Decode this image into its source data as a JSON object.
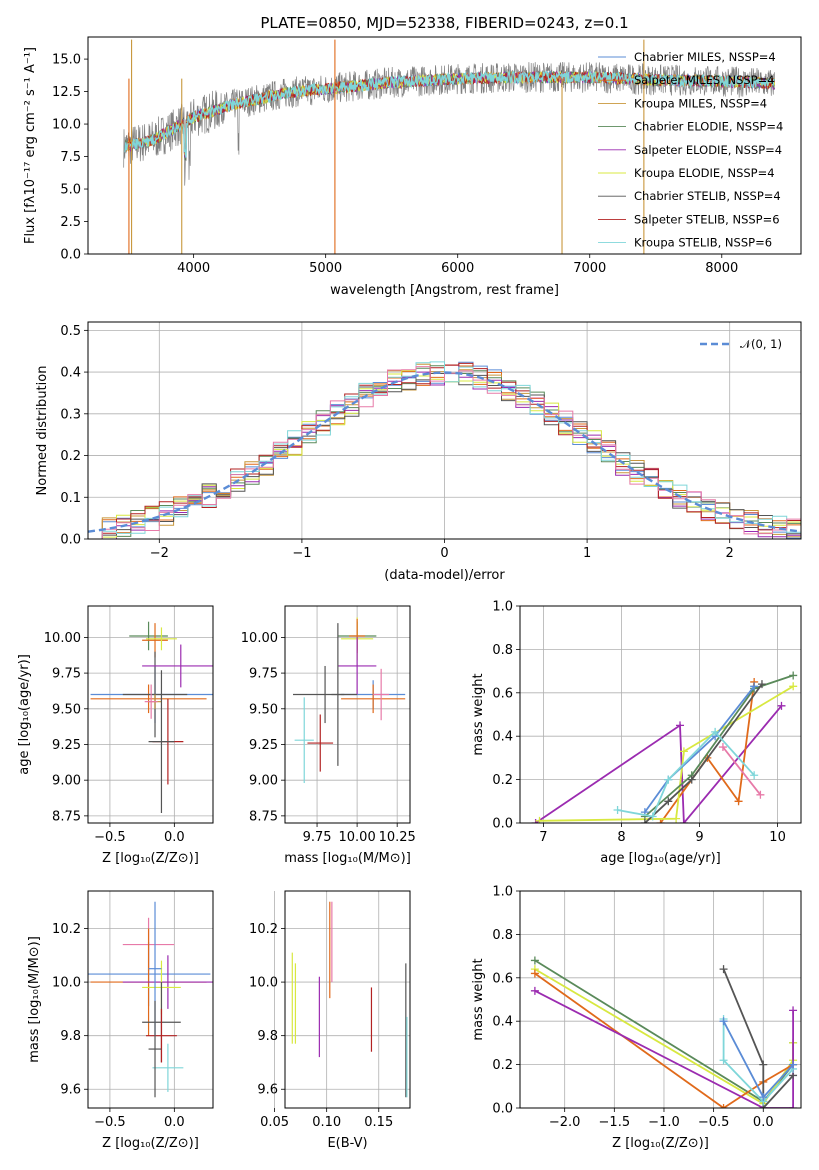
{
  "colors": {
    "chabrier_miles": "#5b8cd6",
    "salpeter_miles": "#e06a1b",
    "kroupa_miles": "#c8973c",
    "chabrier_elodie": "#5a8a5a",
    "salpeter_elodie": "#9b2bb0",
    "kroupa_elodie": "#d8e840",
    "chabrier_stelib": "#555555",
    "salpeter_stelib": "#b22222",
    "kroupa_stelib": "#7fd6d9",
    "pink": "#e77aa8",
    "gaussian": "#5b8cd6"
  },
  "chart_data": [
    {
      "type": "line",
      "title": "PLATE=0850, MJD=52338, FIBERID=0243, z=0.1",
      "xlabel": "wavelength [Angstrom, rest frame]",
      "ylabel": "Flux [fλ10⁻¹⁷ erg cm⁻² s⁻¹ A⁻¹]",
      "xlim": [
        3200,
        8600
      ],
      "ylim": [
        0,
        16.7
      ],
      "xticks": [
        4000,
        5000,
        6000,
        7000,
        8000
      ],
      "yticks": [
        "0.0",
        "2.5",
        "5.0",
        "7.5",
        "10.0",
        "12.5",
        "15.0"
      ],
      "legend": "upper-right",
      "series": [
        {
          "name": "Chabrier MILES, NSSP=4",
          "color_key": "chabrier_miles"
        },
        {
          "name": "Salpeter MILES, NSSP=4",
          "color_key": "salpeter_miles"
        },
        {
          "name": "Kroupa MILES, NSSP=4",
          "color_key": "kroupa_miles"
        },
        {
          "name": "Chabrier ELODIE, NSSP=4",
          "color_key": "chabrier_elodie"
        },
        {
          "name": "Salpeter ELODIE, NSSP=4",
          "color_key": "salpeter_elodie"
        },
        {
          "name": "Kroupa ELODIE, NSSP=4",
          "color_key": "kroupa_elodie"
        },
        {
          "name": "Chabrier STELIB, NSSP=4",
          "color_key": "chabrier_stelib"
        },
        {
          "name": "Salpeter STELIB, NSSP=6",
          "color_key": "salpeter_stelib"
        },
        {
          "name": "Kroupa STELIB, NSSP=6",
          "color_key": "kroupa_stelib"
        }
      ],
      "data_shape": {
        "x": [
          3450,
          3700,
          4000,
          4300,
          4700,
          5100,
          5500,
          6000,
          6500,
          7000,
          7500,
          8000,
          8400
        ],
        "y": [
          8.2,
          8.8,
          10.5,
          11.5,
          12.4,
          12.8,
          13.2,
          13.5,
          13.6,
          13.6,
          13.4,
          13.3,
          13.1
        ]
      },
      "spikes_x": [
        3510,
        3530,
        3910,
        5070,
        6790,
        7410
      ]
    },
    {
      "type": "line",
      "xlabel": "(data-model)/error",
      "ylabel": "Normed distribution",
      "xlim": [
        -2.5,
        2.5
      ],
      "ylim": [
        0,
        0.52
      ],
      "xticks": [
        "−2",
        "−1",
        "0",
        "1",
        "2"
      ],
      "yticks": [
        "0.0",
        "0.1",
        "0.2",
        "0.3",
        "0.4",
        "0.5"
      ],
      "legend_entry": "𝒩(0, 1)",
      "legend": "top-right",
      "gaussian": {
        "mu": 0,
        "sigma": 1
      }
    },
    {
      "type": "scatter",
      "xlabel": "Z [log₁₀(Z/Z⊙)]",
      "ylabel": "age  [log₁₀(age/yr)]",
      "xlim": [
        -0.67,
        0.3
      ],
      "ylim": [
        8.7,
        10.22
      ],
      "xticks": [
        "−0.5",
        "0.0"
      ],
      "yticks": [
        "8.75",
        "9.00",
        "9.25",
        "9.50",
        "9.75",
        "10.00"
      ],
      "points": [
        {
          "x": -0.2,
          "y": 10.01,
          "xerr": 0.15,
          "yerr": 0.1,
          "c": "chabrier_elodie"
        },
        {
          "x": -0.15,
          "y": 9.98,
          "xerr": 0.1,
          "yerr": 0.12,
          "c": "salpeter_miles"
        },
        {
          "x": -0.1,
          "y": 9.99,
          "xerr": 0.12,
          "yerr": 0.08,
          "c": "kroupa_elodie"
        },
        {
          "x": -0.15,
          "y": 9.6,
          "xerr": 0.5,
          "yerr": 0.2,
          "c": "chabrier_miles"
        },
        {
          "x": -0.2,
          "y": 9.57,
          "xerr": 0.45,
          "yerr": 0.1,
          "c": "salpeter_miles"
        },
        {
          "x": -0.15,
          "y": 9.6,
          "xerr": 0.25,
          "yerr": 0.3,
          "c": "chabrier_stelib"
        },
        {
          "x": 0.05,
          "y": 9.8,
          "xerr": 0.3,
          "yerr": 0.15,
          "c": "salpeter_elodie"
        },
        {
          "x": -0.15,
          "y": 9.55,
          "xerr": 0.05,
          "yerr": 0.05,
          "c": "kroupa_miles"
        },
        {
          "x": -0.05,
          "y": 9.27,
          "xerr": 0.12,
          "yerr": 0.3,
          "c": "salpeter_stelib"
        },
        {
          "x": -0.1,
          "y": 9.27,
          "xerr": 0.1,
          "yerr": 0.5,
          "c": "chabrier_stelib"
        },
        {
          "x": -0.18,
          "y": 9.55,
          "xerr": 0.05,
          "yerr": 0.12,
          "c": "pink"
        }
      ]
    },
    {
      "type": "scatter",
      "xlabel": "mass [log₁₀(M/M⊙)]",
      "xlim": [
        9.55,
        10.33
      ],
      "ylim": [
        8.7,
        10.22
      ],
      "xticks": [
        "9.75",
        "10.00",
        "10.25"
      ],
      "yticks": [
        "8.75",
        "9.00",
        "9.25",
        "9.50",
        "9.75",
        "10.00"
      ],
      "points": [
        {
          "x": 10.0,
          "y": 10.01,
          "xerr": 0.12,
          "yerr": 0.1,
          "c": "chabrier_elodie"
        },
        {
          "x": 10.0,
          "y": 9.99,
          "xerr": 0.1,
          "yerr": 0.15,
          "c": "kroupa_elodie"
        },
        {
          "x": 10.0,
          "y": 10.01,
          "xerr": 0.05,
          "yerr": 0.12,
          "c": "salpeter_miles"
        },
        {
          "x": 10.1,
          "y": 9.6,
          "xerr": 0.2,
          "yerr": 0.1,
          "c": "chabrier_miles"
        },
        {
          "x": 10.1,
          "y": 9.57,
          "xerr": 0.2,
          "yerr": 0.1,
          "c": "salpeter_miles"
        },
        {
          "x": 10.0,
          "y": 9.8,
          "xerr": 0.12,
          "yerr": 0.2,
          "c": "salpeter_elodie"
        },
        {
          "x": 9.8,
          "y": 9.6,
          "xerr": 0.2,
          "yerr": 0.2,
          "c": "chabrier_stelib"
        },
        {
          "x": 9.77,
          "y": 9.26,
          "xerr": 0.08,
          "yerr": 0.2,
          "c": "salpeter_stelib"
        },
        {
          "x": 9.67,
          "y": 9.28,
          "xerr": 0.06,
          "yerr": 0.3,
          "c": "kroupa_stelib"
        },
        {
          "x": 10.15,
          "y": 9.6,
          "xerr": 0.05,
          "yerr": 0.18,
          "c": "pink"
        },
        {
          "x": 9.88,
          "y": 9.6,
          "xerr": 0.04,
          "yerr": 0.5,
          "c": "chabrier_stelib"
        }
      ]
    },
    {
      "type": "line",
      "xlabel": "age  [log₁₀(age/yr)]",
      "ylabel": "mass weight",
      "xlim": [
        6.7,
        10.3
      ],
      "ylim": [
        0,
        1.0
      ],
      "xticks": [
        "7",
        "8",
        "9",
        "10"
      ],
      "yticks": [
        "0.0",
        "0.2",
        "0.4",
        "0.6",
        "0.8",
        "1.0"
      ],
      "series": [
        {
          "c": "salpeter_elodie",
          "x": [
            6.9,
            8.75,
            8.8,
            10.05
          ],
          "y": [
            0.0,
            0.45,
            0.0,
            0.54
          ]
        },
        {
          "c": "salpeter_miles",
          "x": [
            8.5,
            9.1,
            9.5,
            9.7
          ],
          "y": [
            0.0,
            0.3,
            0.1,
            0.65
          ]
        },
        {
          "c": "kroupa_elodie",
          "x": [
            6.95,
            8.7,
            8.8,
            10.2
          ],
          "y": [
            0.01,
            0.02,
            0.33,
            0.63
          ]
        },
        {
          "c": "chabrier_elodie",
          "x": [
            8.3,
            8.9,
            9.7,
            10.2
          ],
          "y": [
            0.03,
            0.22,
            0.62,
            0.68
          ]
        },
        {
          "c": "chabrier_stelib",
          "x": [
            8.3,
            8.6,
            8.9,
            9.8
          ],
          "y": [
            0.0,
            0.1,
            0.2,
            0.64
          ]
        },
        {
          "c": "chabrier_miles",
          "x": [
            8.3,
            8.6,
            9.2,
            9.7
          ],
          "y": [
            0.05,
            0.2,
            0.4,
            0.63
          ]
        },
        {
          "c": "kroupa_stelib",
          "x": [
            7.95,
            8.4,
            8.6,
            9.2,
            9.7
          ],
          "y": [
            0.06,
            0.03,
            0.2,
            0.42,
            0.22
          ]
        },
        {
          "c": "pink",
          "x": [
            9.3,
            9.78
          ],
          "y": [
            0.35,
            0.13
          ]
        }
      ]
    },
    {
      "type": "scatter",
      "xlabel": "Z [log₁₀(Z/Z⊙)]",
      "ylabel": "mass [log₁₀(M/M⊙)]",
      "xlim": [
        -0.67,
        0.3
      ],
      "ylim": [
        9.53,
        10.34
      ],
      "xticks": [
        "−0.5",
        "0.0"
      ],
      "yticks": [
        "9.6",
        "9.8",
        "10.0",
        "10.2"
      ],
      "points": [
        {
          "x": -0.2,
          "y": 10.14,
          "xerr": 0.2,
          "yerr": 0.1,
          "c": "pink"
        },
        {
          "x": -0.2,
          "y": 10.03,
          "xerr": 0.48,
          "yerr": 0.12,
          "c": "chabrier_miles"
        },
        {
          "x": -0.2,
          "y": 10.0,
          "xerr": 0.45,
          "yerr": 0.2,
          "c": "salpeter_miles"
        },
        {
          "x": -0.05,
          "y": 10.0,
          "xerr": 0.35,
          "yerr": 0.1,
          "c": "salpeter_elodie"
        },
        {
          "x": -0.1,
          "y": 9.98,
          "xerr": 0.15,
          "yerr": 0.1,
          "c": "kroupa_elodie"
        },
        {
          "x": -0.1,
          "y": 9.85,
          "xerr": 0.15,
          "yerr": 0.15,
          "c": "chabrier_stelib"
        },
        {
          "x": -0.1,
          "y": 9.8,
          "xerr": 0.12,
          "yerr": 0.1,
          "c": "salpeter_stelib"
        },
        {
          "x": -0.05,
          "y": 9.68,
          "xerr": 0.12,
          "yerr": 0.09,
          "c": "kroupa_stelib"
        },
        {
          "x": -0.15,
          "y": 10.05,
          "xerr": 0.05,
          "yerr": 0.25,
          "c": "chabrier_miles"
        },
        {
          "x": -0.15,
          "y": 9.75,
          "xerr": 0.05,
          "yerr": 0.18,
          "c": "chabrier_stelib"
        }
      ]
    },
    {
      "type": "scatter",
      "xlabel": "E(B-V)",
      "xlim": [
        0.06,
        0.18
      ],
      "ylim": [
        9.53,
        10.34
      ],
      "xticks": [
        "0.05",
        "0.10",
        "0.15"
      ],
      "yticks": [
        "9.6",
        "9.8",
        "10.0",
        "10.2"
      ],
      "points": [
        {
          "x": 0.067,
          "y": 9.94,
          "yerr": 0.17,
          "c": "kroupa_elodie"
        },
        {
          "x": 0.07,
          "y": 9.92,
          "yerr": 0.15,
          "c": "kroupa_elodie"
        },
        {
          "x": 0.093,
          "y": 9.87,
          "yerr": 0.15,
          "c": "salpeter_elodie"
        },
        {
          "x": 0.103,
          "y": 10.12,
          "yerr": 0.18,
          "c": "salpeter_miles"
        },
        {
          "x": 0.105,
          "y": 10.15,
          "yerr": 0.15,
          "c": "pink"
        },
        {
          "x": 0.143,
          "y": 9.86,
          "yerr": 0.12,
          "c": "salpeter_stelib"
        },
        {
          "x": 0.176,
          "y": 9.82,
          "yerr": 0.25,
          "c": "chabrier_stelib"
        },
        {
          "x": 0.177,
          "y": 9.72,
          "yerr": 0.15,
          "c": "kroupa_stelib"
        }
      ]
    },
    {
      "type": "line",
      "xlabel": "Z [log₁₀(Z/Z⊙)]",
      "ylabel": "mass weight",
      "xlim": [
        -2.45,
        0.38
      ],
      "ylim": [
        0,
        1.0
      ],
      "xticks": [
        "−2.0",
        "−1.5",
        "−1.0",
        "−0.5",
        "0.0"
      ],
      "yticks": [
        "0.0",
        "0.2",
        "0.4",
        "0.6",
        "0.8",
        "1.0"
      ],
      "series": [
        {
          "c": "chabrier_elodie",
          "x": [
            -2.3,
            0.0,
            0.3,
            0.3
          ],
          "y": [
            0.68,
            0.03,
            0.2,
            0.3
          ]
        },
        {
          "c": "kroupa_elodie",
          "x": [
            -2.3,
            0.0,
            0.3,
            0.3
          ],
          "y": [
            0.64,
            0.02,
            0.22,
            0.3
          ]
        },
        {
          "c": "salpeter_miles",
          "x": [
            -2.3,
            -0.4,
            0.0,
            0.3
          ],
          "y": [
            0.62,
            0.0,
            0.12,
            0.2
          ]
        },
        {
          "c": "salpeter_elodie",
          "x": [
            -2.3,
            0.0,
            0.3,
            0.3
          ],
          "y": [
            0.54,
            0.0,
            0.0,
            0.45
          ]
        },
        {
          "c": "chabrier_stelib",
          "x": [
            -0.4,
            0.0,
            0.0,
            0.3
          ],
          "y": [
            0.64,
            0.2,
            0.0,
            0.15
          ]
        },
        {
          "c": "kroupa_stelib",
          "x": [
            -0.4,
            -0.4,
            0.0,
            0.3
          ],
          "y": [
            0.41,
            0.22,
            0.03,
            0.18
          ]
        },
        {
          "c": "chabrier_miles",
          "x": [
            -0.4,
            0.0,
            0.3
          ],
          "y": [
            0.4,
            0.05,
            0.2
          ]
        }
      ]
    }
  ]
}
